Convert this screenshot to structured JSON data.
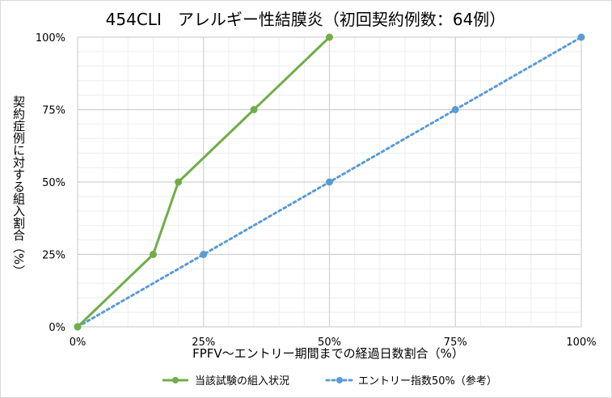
{
  "chart_data": {
    "type": "line",
    "title": "454CLI　アレルギー性結膜炎（初回契約例数：64例）",
    "xlabel": "FPFV～エントリー期間までの経過日数割合（%）",
    "ylabel": "契約症例に対する組入割合（%）",
    "x_ticks": [
      "0%",
      "25%",
      "50%",
      "75%",
      "100%"
    ],
    "y_ticks": [
      "0%",
      "25%",
      "50%",
      "75%",
      "100%"
    ],
    "xlim": [
      0,
      100
    ],
    "ylim": [
      0,
      100
    ],
    "grid": true,
    "legend_position": "bottom",
    "series": [
      {
        "name": "当該試験の組入状況",
        "color": "#70ad47",
        "style": "solid",
        "points": [
          [
            0,
            0
          ],
          [
            15,
            25
          ],
          [
            20,
            50
          ],
          [
            35,
            75
          ],
          [
            50,
            100
          ]
        ]
      },
      {
        "name": "エントリー指数50%（参考）",
        "color": "#5b9bd5",
        "style": "dotted",
        "points": [
          [
            0,
            0
          ],
          [
            25,
            25
          ],
          [
            50,
            50
          ],
          [
            75,
            75
          ],
          [
            100,
            100
          ]
        ]
      }
    ]
  }
}
